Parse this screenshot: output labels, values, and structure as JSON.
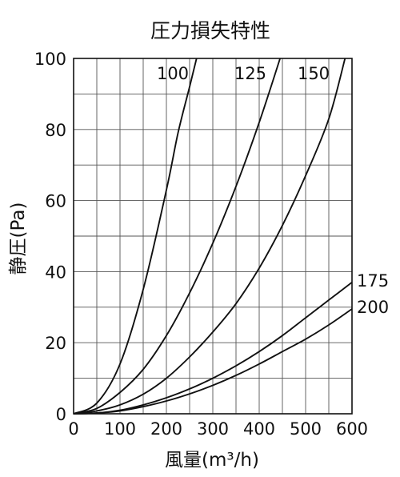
{
  "chart_data": {
    "type": "line",
    "title": "圧力損失特性",
    "xlabel": "風量(m³/h)",
    "ylabel": "静圧(Pa)",
    "xlim": [
      0,
      600
    ],
    "ylim": [
      0,
      100
    ],
    "x_ticks": [
      "0",
      "100",
      "200",
      "300",
      "400",
      "500",
      "600"
    ],
    "y_ticks": [
      "0",
      "20",
      "40",
      "60",
      "80",
      "100"
    ],
    "grid": true,
    "series": [
      {
        "name": "100",
        "x": [
          0,
          50,
          100,
          150,
          200,
          225,
          250,
          265
        ],
        "y": [
          0,
          3.0,
          14.0,
          35.0,
          63.0,
          79.0,
          92.0,
          100
        ]
      },
      {
        "name": "125",
        "x": [
          0,
          50,
          100,
          150,
          200,
          250,
          300,
          350,
          400,
          445
        ],
        "y": [
          0,
          1.5,
          6.0,
          12.5,
          22.0,
          34.0,
          48.0,
          64.0,
          82.0,
          100
        ]
      },
      {
        "name": "150",
        "x": [
          0,
          50,
          100,
          150,
          200,
          250,
          300,
          350,
          400,
          450,
          500,
          550,
          585
        ],
        "y": [
          0,
          0.8,
          2.5,
          5.5,
          10.0,
          16.0,
          23.0,
          31.0,
          41.0,
          53.0,
          67.0,
          83.0,
          100
        ]
      },
      {
        "name": "175",
        "x": [
          0,
          50,
          100,
          150,
          200,
          250,
          300,
          350,
          400,
          450,
          500,
          550,
          600
        ],
        "y": [
          0,
          0.2,
          1.0,
          2.5,
          4.5,
          7.0,
          10.0,
          13.5,
          17.5,
          22.0,
          27.0,
          32.0,
          37.0
        ]
      },
      {
        "name": "200",
        "x": [
          0,
          50,
          100,
          150,
          200,
          250,
          300,
          350,
          400,
          450,
          500,
          550,
          600
        ],
        "y": [
          0,
          0.2,
          0.8,
          2.0,
          3.6,
          5.6,
          8.0,
          10.8,
          14.0,
          17.5,
          21.0,
          25.0,
          29.5
        ]
      }
    ]
  }
}
